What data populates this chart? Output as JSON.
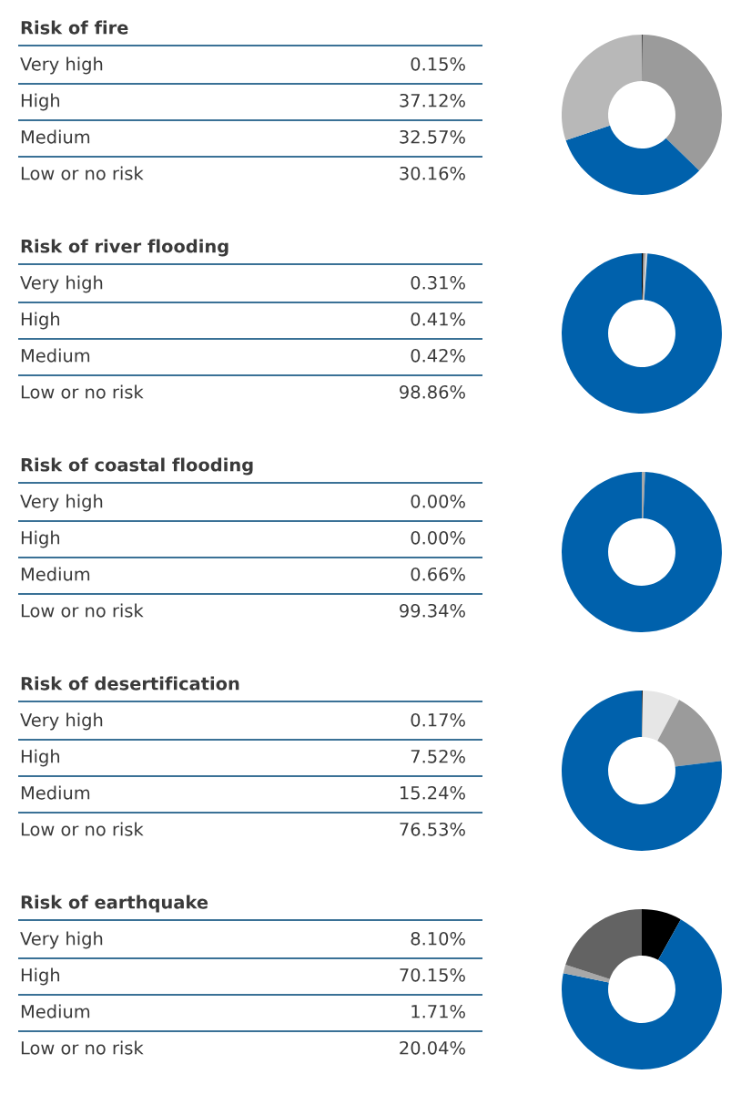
{
  "chart_data": [
    {
      "type": "other",
      "title": "Risk of fire",
      "categories": [
        "Very high",
        "High",
        "Medium",
        "Low or no risk"
      ],
      "value_labels": [
        "0.15%",
        "37.12%",
        "32.57%",
        "30.16%"
      ]
    },
    {
      "type": "donut",
      "categories": [
        null,
        null,
        null,
        null
      ],
      "values": [
        0.15,
        37.12,
        32.57,
        30.16
      ],
      "colors": [
        "#000000",
        "#9b9b9b",
        "#0061ac",
        "#b8b8b8"
      ]
    },
    {
      "type": "other",
      "title": "Risk of river flooding",
      "categories": [
        "Very high",
        "High",
        "Medium",
        "Low or no risk"
      ],
      "value_labels": [
        "0.31%",
        "0.41%",
        "0.42%",
        "98.86%"
      ]
    },
    {
      "type": "donut",
      "categories": [
        null,
        null,
        null,
        null
      ],
      "values": [
        0.31,
        0.41,
        0.42,
        98.86
      ],
      "colors": [
        "#000000",
        "#9b9b9b",
        "#d0d0d0",
        "#0061ac"
      ]
    },
    {
      "type": "other",
      "title": "Risk of coastal flooding",
      "categories": [
        "Very high",
        "High",
        "Medium",
        "Low or no risk"
      ],
      "value_labels": [
        "0.00%",
        "0.00%",
        "0.66%",
        "99.34%"
      ]
    },
    {
      "type": "donut",
      "categories": [
        null,
        null,
        null,
        null
      ],
      "values": [
        0.0,
        0.0,
        0.66,
        99.34
      ],
      "colors": [
        "#000000",
        "#9b9b9b",
        "#a8a8a8",
        "#0061ac"
      ]
    },
    {
      "type": "other",
      "title": "Risk of desertification",
      "categories": [
        "Very high",
        "High",
        "Medium",
        "Low or no risk"
      ],
      "value_labels": [
        "0.17%",
        "7.52%",
        "15.24%",
        "76.53%"
      ]
    },
    {
      "type": "donut",
      "categories": [
        null,
        null,
        null,
        null
      ],
      "values": [
        0.17,
        7.52,
        15.24,
        76.53
      ],
      "colors": [
        "#000000",
        "#e6e6e6",
        "#9b9b9b",
        "#0061ac"
      ]
    },
    {
      "type": "other",
      "title": "Risk of earthquake",
      "categories": [
        "Very high",
        "High",
        "Medium",
        "Low or no risk"
      ],
      "value_labels": [
        "8.10%",
        "70.15%",
        "1.71%",
        "20.04%"
      ]
    },
    {
      "type": "donut",
      "categories": [
        null,
        null,
        null,
        null
      ],
      "values": [
        8.1,
        70.15,
        1.71,
        20.04
      ],
      "colors": [
        "#000000",
        "#0061ac",
        "#a8a8a8",
        "#636363"
      ]
    }
  ]
}
